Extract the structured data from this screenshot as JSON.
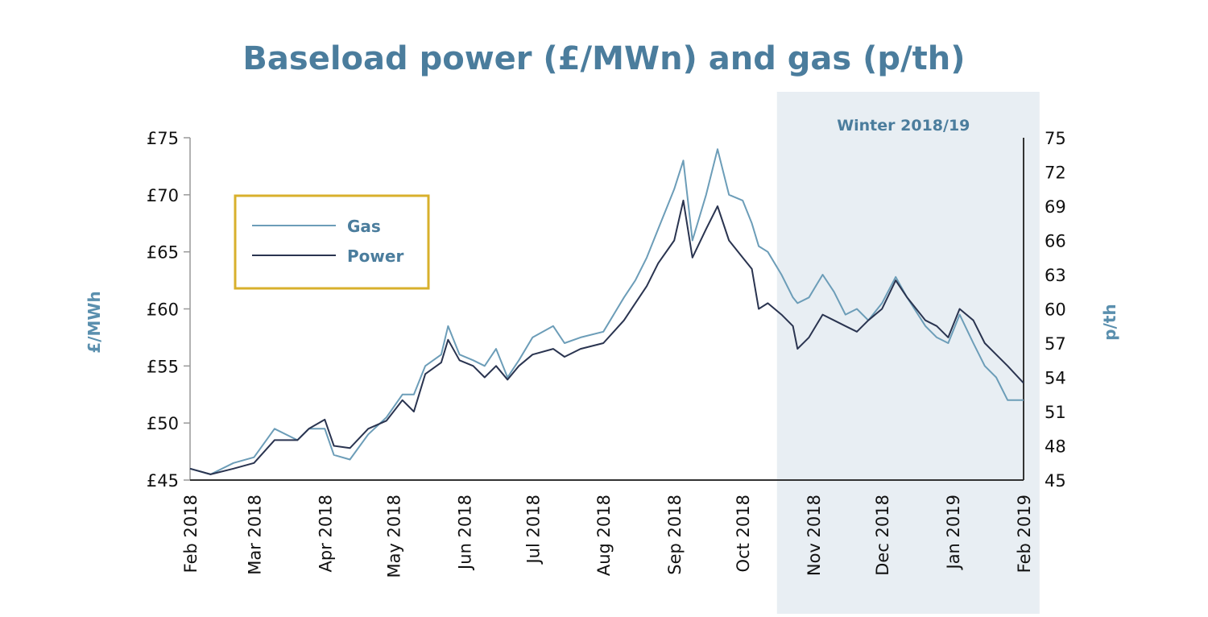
{
  "chart_data": {
    "type": "line",
    "title": "Baseload power (£/MWn) and gas (p/th)",
    "ylabel_left": "£/MWh",
    "ylabel_right": "p/th",
    "ylim_left": [
      45,
      75
    ],
    "ylim_right": [
      45,
      75
    ],
    "yticks_left": [
      "£45",
      "£50",
      "£55",
      "£60",
      "£65",
      "£70",
      "£75"
    ],
    "yticks_left_values": [
      45,
      50,
      55,
      60,
      65,
      70,
      75
    ],
    "yticks_right": [
      "45",
      "48",
      "51",
      "54",
      "57",
      "60",
      "63",
      "66",
      "69",
      "72",
      "75"
    ],
    "xlim": [
      "2018-02-01",
      "2019-02-01"
    ],
    "xticks": [
      {
        "date": "2018-02-01",
        "label": "Feb 2018"
      },
      {
        "date": "2018-03-01",
        "label": "Mar 2018"
      },
      {
        "date": "2018-04-01",
        "label": "Apr 2018"
      },
      {
        "date": "2018-05-01",
        "label": "May 2018"
      },
      {
        "date": "2018-06-01",
        "label": "Jun 2018"
      },
      {
        "date": "2018-07-01",
        "label": "Jul 2018"
      },
      {
        "date": "2018-08-01",
        "label": "Aug 2018"
      },
      {
        "date": "2018-09-01",
        "label": "Sep 2018"
      },
      {
        "date": "2018-10-01",
        "label": "Oct 2018"
      },
      {
        "date": "2018-11-01",
        "label": "Nov 2018"
      },
      {
        "date": "2018-12-01",
        "label": "Dec 2018"
      },
      {
        "date": "2019-01-01",
        "label": "Jan 2019"
      },
      {
        "date": "2019-02-01",
        "label": "Feb 2019"
      }
    ],
    "grid": false,
    "legend_placement": "top-left",
    "annotation": {
      "label": "Winter 2018/19",
      "from": "2018-10-16",
      "to": "2019-02-08",
      "color": "#e8eef3"
    },
    "x": [
      "2018-02-01",
      "2018-02-10",
      "2018-02-20",
      "2018-03-01",
      "2018-03-10",
      "2018-03-20",
      "2018-03-25",
      "2018-04-01",
      "2018-04-05",
      "2018-04-12",
      "2018-04-20",
      "2018-04-28",
      "2018-05-05",
      "2018-05-10",
      "2018-05-15",
      "2018-05-22",
      "2018-05-25",
      "2018-05-30",
      "2018-06-05",
      "2018-06-10",
      "2018-06-15",
      "2018-06-20",
      "2018-06-25",
      "2018-07-01",
      "2018-07-10",
      "2018-07-15",
      "2018-07-22",
      "2018-08-01",
      "2018-08-10",
      "2018-08-15",
      "2018-08-20",
      "2018-08-25",
      "2018-09-01",
      "2018-09-05",
      "2018-09-09",
      "2018-09-15",
      "2018-09-20",
      "2018-09-25",
      "2018-10-01",
      "2018-10-05",
      "2018-10-08",
      "2018-10-12",
      "2018-10-18",
      "2018-10-23",
      "2018-10-25",
      "2018-10-30",
      "2018-11-05",
      "2018-11-10",
      "2018-11-15",
      "2018-11-20",
      "2018-11-25",
      "2018-12-01",
      "2018-12-07",
      "2018-12-12",
      "2018-12-20",
      "2018-12-25",
      "2018-12-30",
      "2019-01-04",
      "2019-01-10",
      "2019-01-15",
      "2019-01-20",
      "2019-01-25",
      "2019-02-01"
    ],
    "series": [
      {
        "name": "Gas",
        "axis": "right",
        "color": "#6c9db8",
        "values": [
          46,
          45.5,
          46.5,
          47,
          49.5,
          48.5,
          49.5,
          49.5,
          47.2,
          46.8,
          49,
          50.5,
          52.5,
          52.5,
          55,
          56,
          58.5,
          56,
          55.5,
          55,
          56.5,
          54,
          55.5,
          57.5,
          58.5,
          57,
          57.5,
          58,
          61,
          62.5,
          64.5,
          67,
          70.5,
          73,
          66,
          70,
          74,
          70,
          69.5,
          67.5,
          65.5,
          65,
          63,
          61,
          60.5,
          61,
          63,
          61.5,
          59.5,
          60,
          59,
          60.5,
          62.8,
          61,
          58.5,
          57.5,
          57,
          59.5,
          57,
          55,
          54,
          52,
          52
        ]
      },
      {
        "name": "Power",
        "axis": "left",
        "color": "#2a3450",
        "values": [
          46,
          45.5,
          46,
          46.5,
          48.5,
          48.5,
          49.5,
          50.3,
          48,
          47.8,
          49.5,
          50.2,
          52,
          51,
          54.3,
          55.3,
          57.3,
          55.5,
          55,
          54,
          55,
          53.8,
          55,
          56,
          56.5,
          55.8,
          56.5,
          57,
          59,
          60.5,
          62,
          64,
          66,
          69.5,
          64.5,
          67,
          69,
          66,
          64.5,
          63.5,
          60,
          60.5,
          59.5,
          58.5,
          56.5,
          57.5,
          59.5,
          59,
          58.5,
          58,
          59,
          60,
          62.5,
          61,
          59,
          58.5,
          57.5,
          60,
          59,
          57,
          56,
          55,
          53.5
        ]
      }
    ],
    "colors": {
      "title": "#4b7d9d",
      "legend_border": "#d8b02c",
      "shade": "#e8eef3"
    }
  }
}
